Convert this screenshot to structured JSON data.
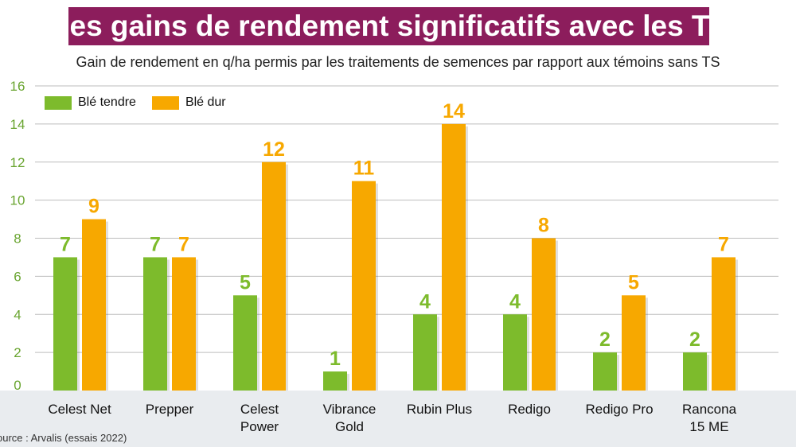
{
  "title": "Des gains de rendement significatifs avec les TS",
  "subtitle": "Gain de rendement en q/ha permis par les traitements de semences par rapport aux témoins sans TS",
  "source": "ource : Arvalis (essais 2022)",
  "colors": {
    "green": "#7dbb2c",
    "orange": "#f7a800",
    "title_bg": "#8c1d5c",
    "tick_green": "#6aa531"
  },
  "chart_data": {
    "type": "bar",
    "title": "Des gains de rendement significatifs avec les TS",
    "subtitle": "Gain de rendement en q/ha permis par les traitements de semences par rapport aux témoins sans TS",
    "categories": [
      [
        "Celest Net"
      ],
      [
        "Prepper"
      ],
      [
        "Celest",
        "Power"
      ],
      [
        "Vibrance",
        "Gold"
      ],
      [
        "Rubin Plus"
      ],
      [
        "Redigo"
      ],
      [
        "Redigo Pro"
      ],
      [
        "Rancona",
        "15 ME"
      ]
    ],
    "series": [
      {
        "name": "Blé tendre",
        "color": "#7dbb2c",
        "values": [
          7,
          7,
          5,
          1,
          4,
          4,
          2,
          2
        ]
      },
      {
        "name": "Blé dur",
        "color": "#f7a800",
        "values": [
          9,
          7,
          12,
          11,
          14,
          8,
          5,
          7
        ]
      }
    ],
    "ylim": [
      0,
      16
    ],
    "yticks": [
      0,
      2,
      4,
      6,
      8,
      10,
      12,
      14,
      16
    ],
    "grid": true,
    "legend": "top-left",
    "data_labels": true
  }
}
